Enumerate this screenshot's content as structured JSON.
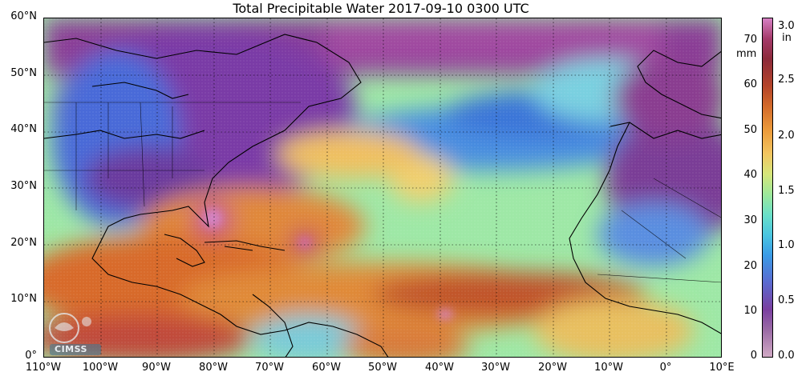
{
  "title": "Total Precipitable Water  2017-09-10 0300 UTC",
  "lat_labels": [
    "60°N",
    "50°N",
    "40°N",
    "30°N",
    "20°N",
    "10°N",
    "0°"
  ],
  "lon_labels": [
    "110°W",
    "100°W",
    "90°W",
    "80°W",
    "70°W",
    "60°W",
    "50°W",
    "40°W",
    "30°W",
    "20°W",
    "10°W",
    "0°",
    "10°E"
  ],
  "colorbar": {
    "mm_ticks": [
      "70",
      "60",
      "50",
      "40",
      "30",
      "20",
      "10",
      "0"
    ],
    "in_ticks": [
      "3.0",
      "2.5",
      "2.0",
      "1.5",
      "1.0",
      "0.5",
      "0.0"
    ],
    "mm_unit": "mm",
    "in_unit": "in"
  },
  "logo_text": "CIMSS",
  "colors": {
    "ocean_moist": "#e08a3c",
    "ocean_mid": "#9fe6a8",
    "ocean_dry": "#5a9ae0",
    "land_dry": "#7a3a90",
    "very_moist": "#c04a2a"
  }
}
